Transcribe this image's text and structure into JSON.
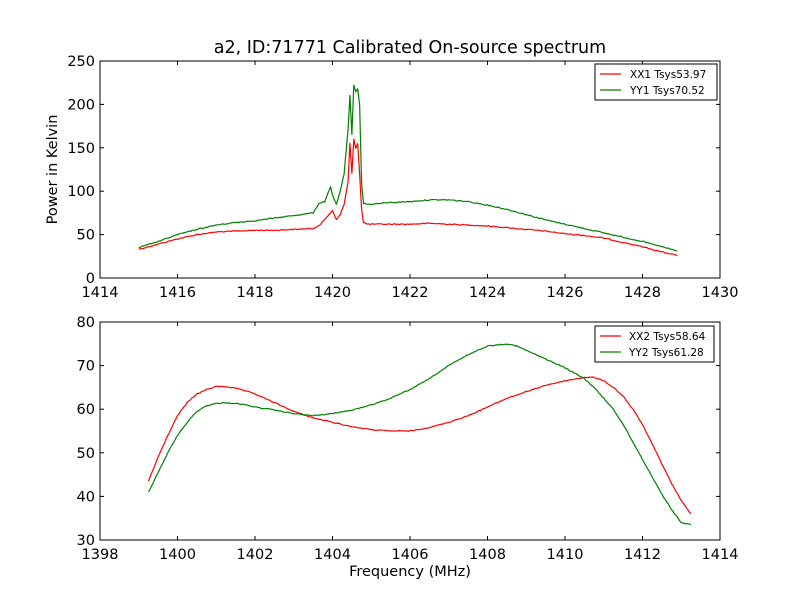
{
  "chart_data": [
    {
      "type": "line",
      "title": "a2, ID:71771 Calibrated On-source spectrum",
      "xlabel": "",
      "ylabel": "Power in Kelvin",
      "xlim": [
        1414,
        1430
      ],
      "ylim": [
        0,
        250
      ],
      "xticks": [
        "1414",
        "1416",
        "1418",
        "1420",
        "1422",
        "1424",
        "1426",
        "1428",
        "1430"
      ],
      "yticks": [
        "0",
        "50",
        "100",
        "150",
        "200",
        "250"
      ],
      "grid": false,
      "legend_position": "top-right",
      "series": [
        {
          "name": "XX1 Tsys53.97",
          "color": "#ff0000",
          "x": [
            1415.0,
            1415.5,
            1416.0,
            1416.5,
            1417.0,
            1417.5,
            1418.0,
            1418.5,
            1419.0,
            1419.5,
            1419.7,
            1419.85,
            1420.0,
            1420.1,
            1420.2,
            1420.3,
            1420.4,
            1420.45,
            1420.5,
            1420.55,
            1420.6,
            1420.65,
            1420.7,
            1420.75,
            1420.8,
            1420.9,
            1421.0,
            1421.5,
            1422.0,
            1422.5,
            1423.0,
            1423.5,
            1424.0,
            1424.5,
            1425.0,
            1425.5,
            1426.0,
            1426.5,
            1427.0,
            1427.5,
            1428.0,
            1428.5,
            1428.9
          ],
          "y": [
            33,
            39,
            45,
            50,
            53,
            54,
            55,
            55,
            56,
            57,
            62,
            70,
            78,
            67,
            73,
            85,
            110,
            155,
            120,
            160,
            150,
            155,
            120,
            80,
            64,
            62,
            62,
            62,
            62,
            63,
            62,
            61,
            60,
            58,
            56,
            54,
            51,
            49,
            46,
            41,
            36,
            30,
            26
          ]
        },
        {
          "name": "YY1 Tsys70.52",
          "color": "#008000",
          "x": [
            1415.0,
            1415.5,
            1416.0,
            1416.5,
            1417.0,
            1417.5,
            1418.0,
            1418.5,
            1419.0,
            1419.5,
            1419.65,
            1419.8,
            1419.95,
            1420.0,
            1420.1,
            1420.2,
            1420.3,
            1420.4,
            1420.45,
            1420.5,
            1420.55,
            1420.6,
            1420.65,
            1420.7,
            1420.75,
            1420.8,
            1420.9,
            1421.0,
            1421.5,
            1422.0,
            1422.5,
            1423.0,
            1423.5,
            1424.0,
            1424.5,
            1425.0,
            1425.5,
            1426.0,
            1426.5,
            1427.0,
            1427.5,
            1428.0,
            1428.5,
            1428.9
          ],
          "y": [
            35,
            42,
            50,
            56,
            61,
            64,
            66,
            69,
            72,
            75,
            86,
            88,
            105,
            95,
            85,
            100,
            120,
            170,
            210,
            165,
            222,
            215,
            218,
            200,
            110,
            86,
            85,
            85,
            87,
            88,
            90,
            90,
            88,
            84,
            79,
            73,
            67,
            62,
            57,
            52,
            47,
            42,
            36,
            31
          ]
        }
      ]
    },
    {
      "type": "line",
      "title": "",
      "xlabel": "Frequency (MHz)",
      "ylabel": "",
      "xlim": [
        1398,
        1414
      ],
      "ylim": [
        30,
        80
      ],
      "xticks": [
        "1398",
        "1400",
        "1402",
        "1404",
        "1406",
        "1408",
        "1410",
        "1412",
        "1414"
      ],
      "yticks": [
        "30",
        "40",
        "50",
        "60",
        "70",
        "80"
      ],
      "grid": false,
      "legend_position": "top-right",
      "series": [
        {
          "name": "XX2 Tsys58.64",
          "color": "#ff0000",
          "x": [
            1399.25,
            1399.5,
            1399.75,
            1400.0,
            1400.25,
            1400.5,
            1400.75,
            1401.0,
            1401.25,
            1401.5,
            1401.75,
            1402.0,
            1402.5,
            1403.0,
            1403.5,
            1404.0,
            1404.5,
            1405.0,
            1405.5,
            1406.0,
            1406.5,
            1407.0,
            1407.5,
            1408.0,
            1408.5,
            1409.0,
            1409.5,
            1410.0,
            1410.5,
            1410.75,
            1411.0,
            1411.25,
            1411.5,
            1411.75,
            1412.0,
            1412.25,
            1412.5,
            1412.75,
            1413.0,
            1413.25
          ],
          "y": [
            43.5,
            49,
            54,
            58.5,
            61.5,
            63.5,
            64.5,
            65.2,
            65.2,
            64.8,
            64.2,
            63.5,
            61.5,
            59.5,
            58,
            57,
            56,
            55.3,
            55,
            55,
            55.8,
            57,
            58.5,
            60.5,
            62.5,
            64,
            65.5,
            66.5,
            67.3,
            67.3,
            66.5,
            65,
            63,
            60,
            56.5,
            52,
            47.5,
            43,
            39,
            36
          ]
        },
        {
          "name": "YY2 Tsys61.28",
          "color": "#008000",
          "x": [
            1399.25,
            1399.5,
            1399.75,
            1400.0,
            1400.25,
            1400.5,
            1400.75,
            1401.0,
            1401.25,
            1401.5,
            1401.75,
            1402.0,
            1402.5,
            1403.0,
            1403.5,
            1404.0,
            1404.5,
            1405.0,
            1405.5,
            1406.0,
            1406.5,
            1407.0,
            1407.5,
            1408.0,
            1408.5,
            1408.75,
            1409.0,
            1409.5,
            1410.0,
            1410.5,
            1410.75,
            1411.0,
            1411.25,
            1411.5,
            1411.75,
            1412.0,
            1412.25,
            1412.5,
            1412.75,
            1413.0,
            1413.25
          ],
          "y": [
            41,
            45.5,
            50,
            54,
            57,
            59.5,
            60.8,
            61.3,
            61.5,
            61.3,
            61,
            60.5,
            59.8,
            59,
            58.5,
            59,
            59.8,
            61,
            62.5,
            64.5,
            67,
            70,
            72.5,
            74.5,
            75,
            74.5,
            73.5,
            71.5,
            69.5,
            67,
            65,
            62.5,
            60,
            56.5,
            52.5,
            48.5,
            44.5,
            40.5,
            37,
            34,
            33.5
          ]
        }
      ]
    }
  ]
}
